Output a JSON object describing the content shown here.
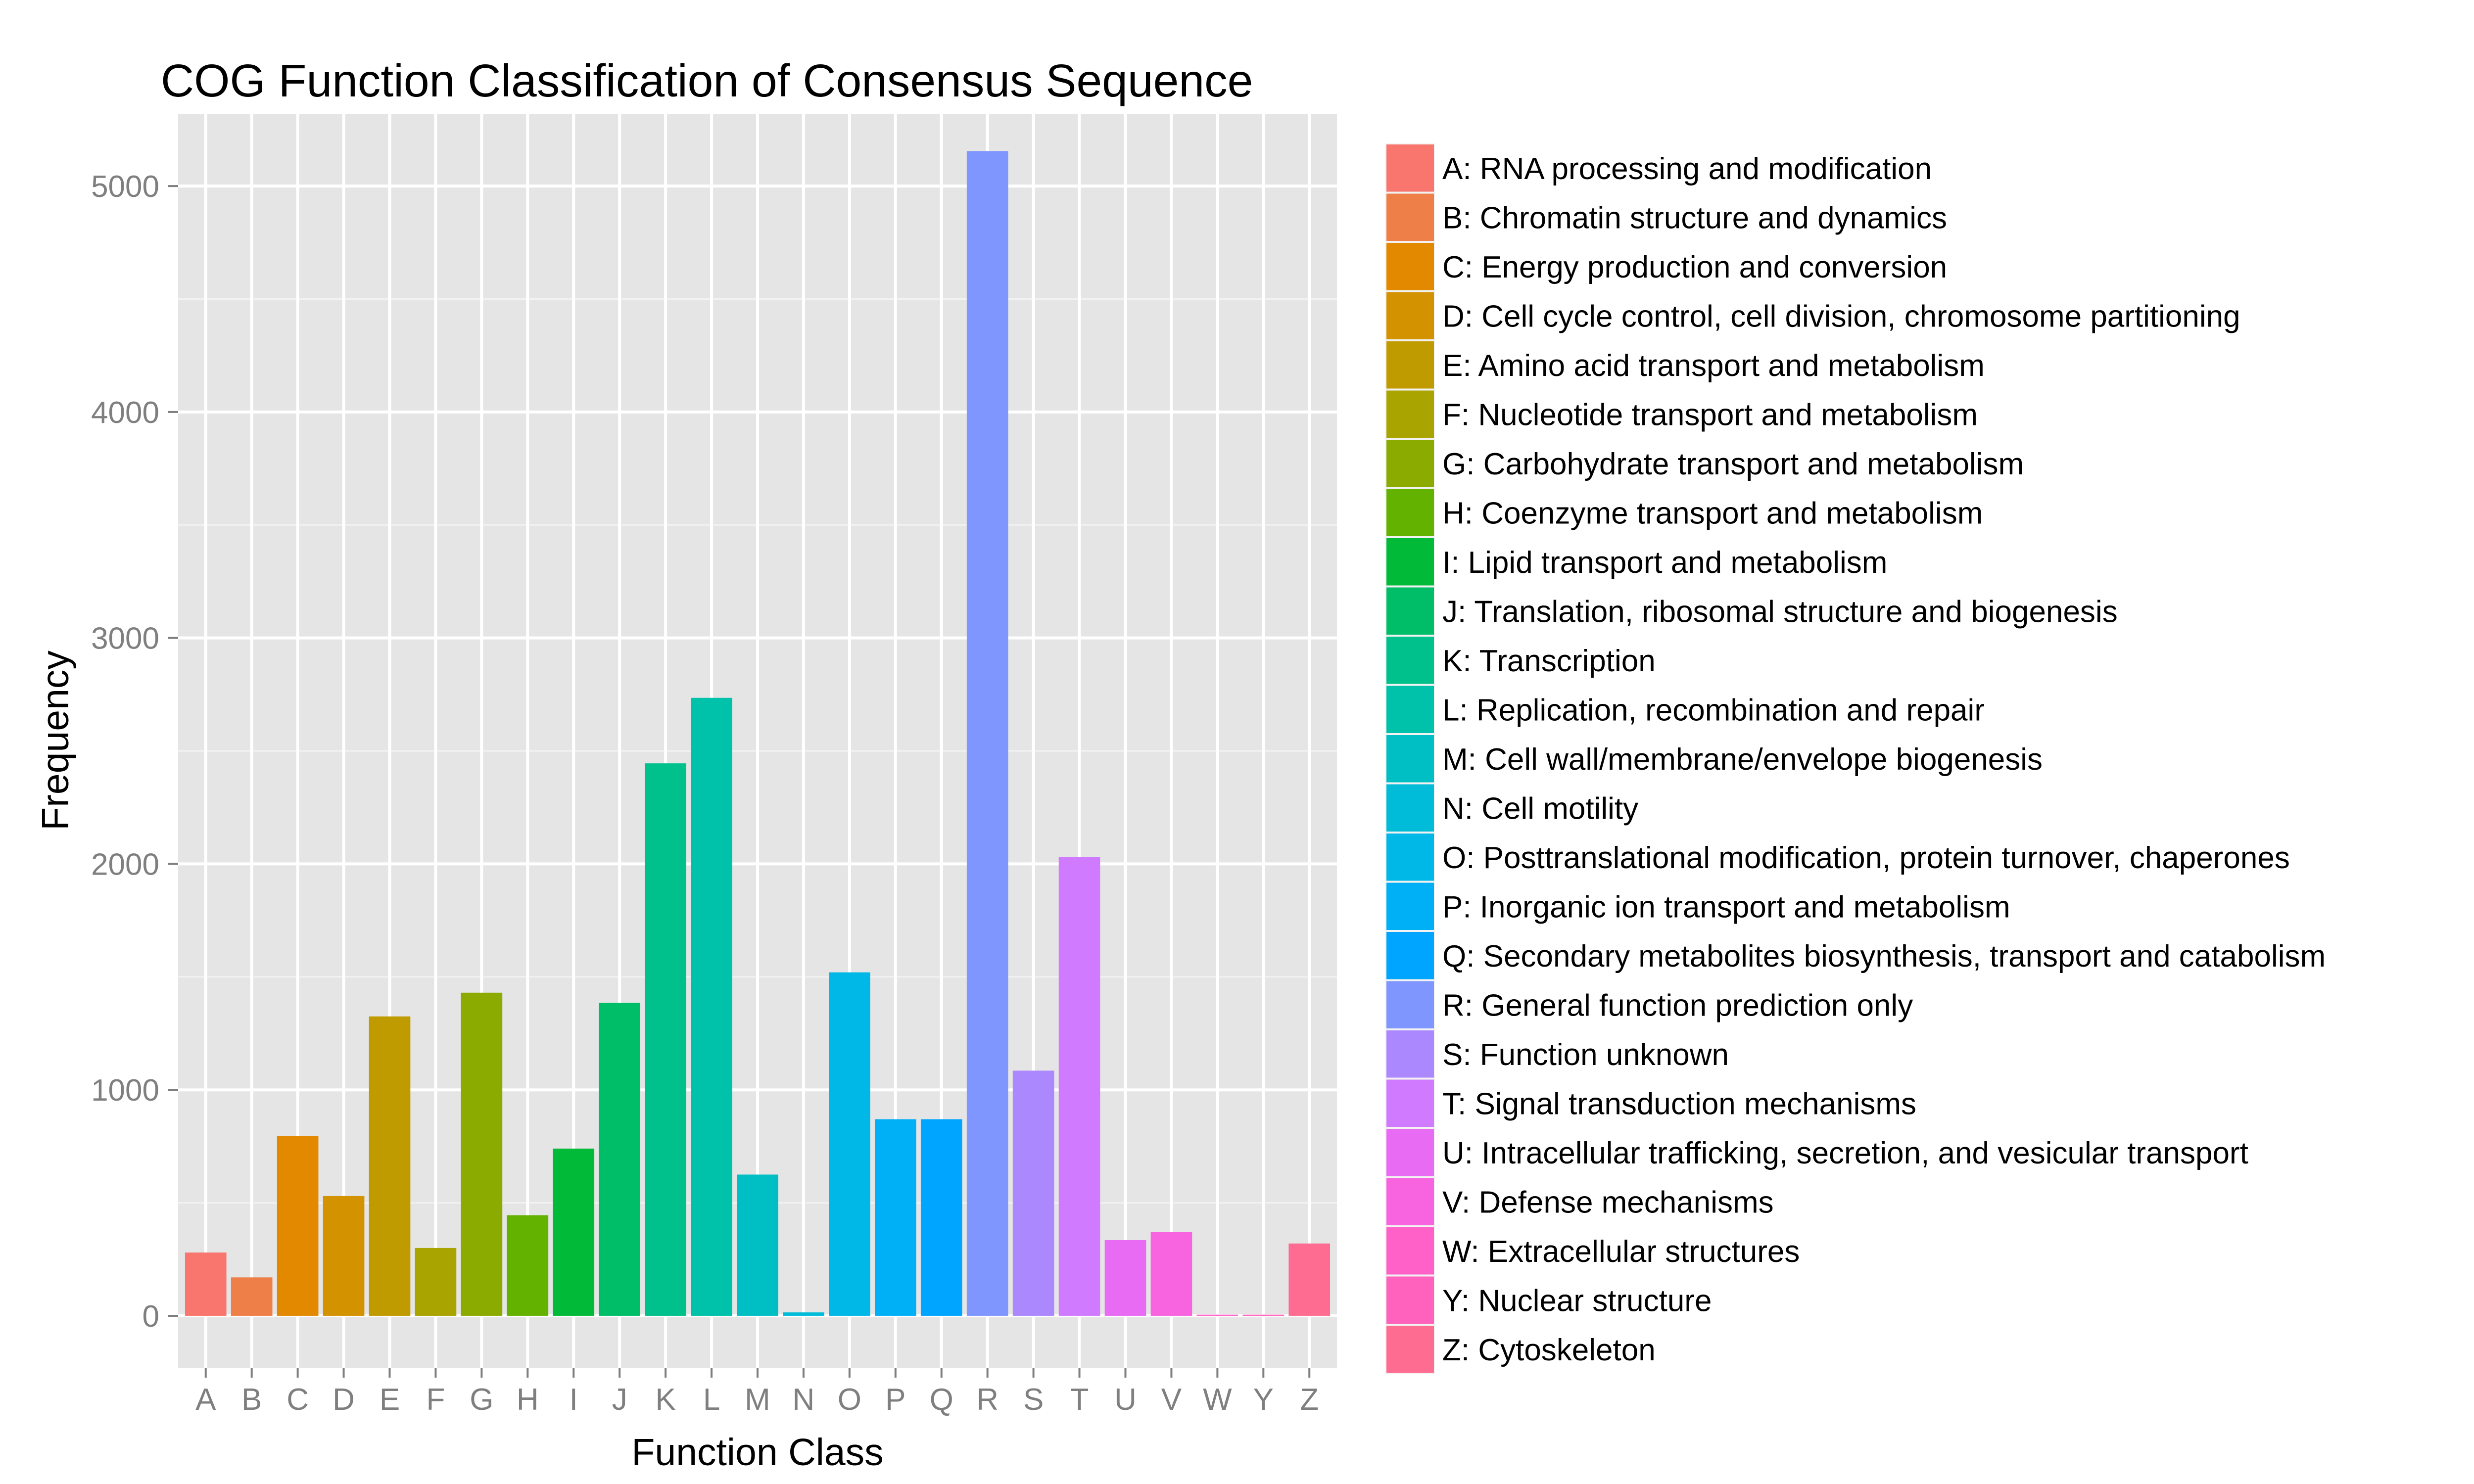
{
  "chart_data": {
    "type": "bar",
    "title": "COG Function Classification of Consensus Sequence",
    "xlabel": "Function Class",
    "ylabel": "Frequency",
    "ylim": [
      -230,
      5320
    ],
    "yticks": [
      0,
      1000,
      2000,
      3000,
      4000,
      5000
    ],
    "grid": true,
    "legend_position": "right",
    "categories": [
      "A",
      "B",
      "C",
      "D",
      "E",
      "F",
      "G",
      "H",
      "I",
      "J",
      "K",
      "L",
      "M",
      "N",
      "O",
      "P",
      "Q",
      "R",
      "S",
      "T",
      "U",
      "V",
      "W",
      "Y",
      "Z"
    ],
    "values": [
      280,
      170,
      795,
      530,
      1325,
      300,
      1430,
      445,
      740,
      1385,
      2445,
      2735,
      625,
      15,
      1520,
      870,
      870,
      5155,
      1085,
      2030,
      335,
      370,
      5,
      5,
      320
    ],
    "colors": [
      "#F8766D",
      "#EF7F49",
      "#E38900",
      "#D39200",
      "#C09B00",
      "#A9A400",
      "#8CAB00",
      "#64B200",
      "#00BA38",
      "#00BE67",
      "#00C08B",
      "#00C1A9",
      "#00BFC4",
      "#00BCD8",
      "#00B8E7",
      "#00B0F6",
      "#00A5FF",
      "#7F96FF",
      "#AC88FF",
      "#CF7AFF",
      "#E76BF3",
      "#F863DF",
      "#FF61C8",
      "#FF62BC",
      "#FF6C91"
    ],
    "legend": [
      "A: RNA processing and modification",
      "B: Chromatin structure and dynamics",
      "C: Energy production and conversion",
      "D: Cell cycle control, cell division, chromosome partitioning",
      "E: Amino acid transport and metabolism",
      "F: Nucleotide transport and metabolism",
      "G: Carbohydrate transport and metabolism",
      "H: Coenzyme transport and metabolism",
      "I: Lipid transport and metabolism",
      "J: Translation, ribosomal structure and biogenesis",
      "K: Transcription",
      "L: Replication, recombination and repair",
      "M: Cell wall/membrane/envelope biogenesis",
      "N: Cell motility",
      "O: Posttranslational modification, protein turnover, chaperones",
      "P: Inorganic ion transport and metabolism",
      "Q: Secondary metabolites biosynthesis, transport and catabolism",
      "R: General function prediction only",
      "S: Function unknown",
      "T: Signal transduction mechanisms",
      "U: Intracellular trafficking, secretion, and vesicular transport",
      "V: Defense mechanisms",
      "W: Extracellular structures",
      "Y: Nuclear structure",
      "Z: Cytoskeleton"
    ]
  }
}
